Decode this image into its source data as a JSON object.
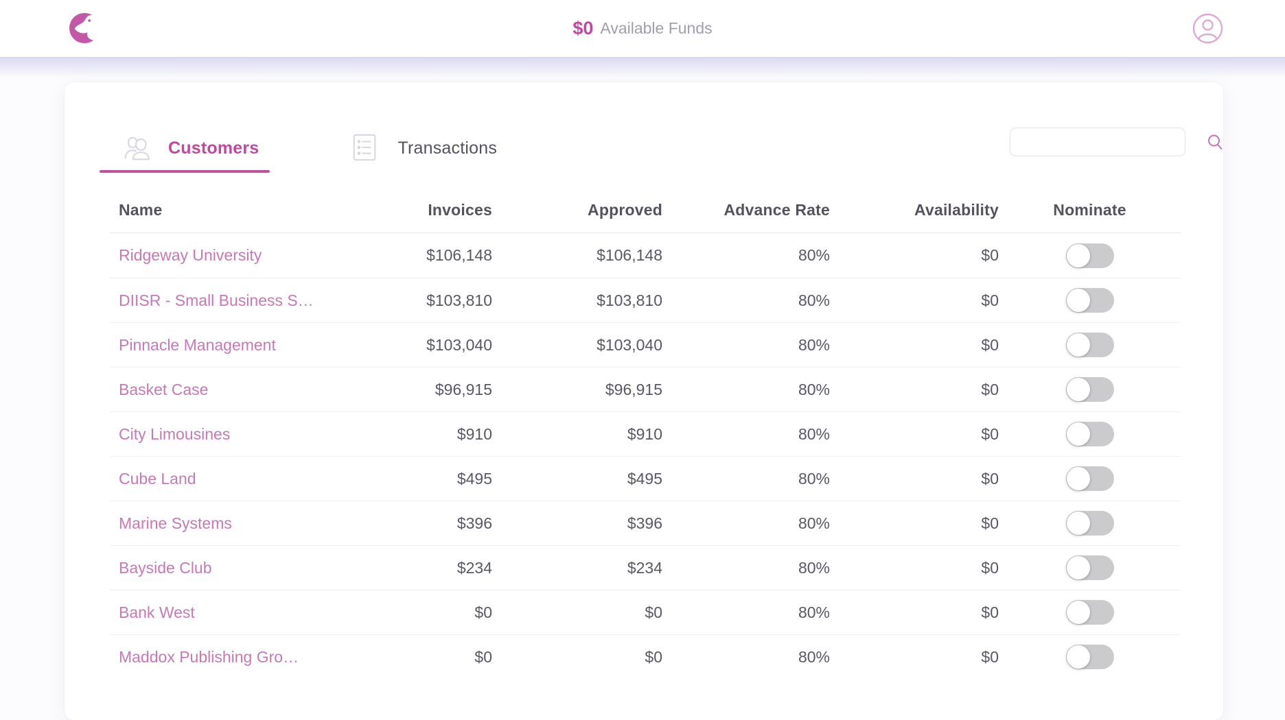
{
  "topbar": {
    "funds_amount": "$0",
    "funds_label": "Available Funds",
    "logo_icon": "duck-logo-icon",
    "avatar_icon": "user-circle-icon"
  },
  "tabs": [
    {
      "label": "Customers",
      "icon": "people-icon",
      "active": true
    },
    {
      "label": "Transactions",
      "icon": "list-icon",
      "active": false
    }
  ],
  "search": {
    "value": "",
    "placeholder": "",
    "icon": "search-icon"
  },
  "table": {
    "columns": [
      "Name",
      "Invoices",
      "Approved",
      "Advance Rate",
      "Availability",
      "Nominate"
    ],
    "rows": [
      {
        "name": "Ridgeway University",
        "invoices": "$106,148",
        "approved": "$106,148",
        "advance_rate": "80%",
        "availability": "$0",
        "nominate_on": false
      },
      {
        "name": "DIISR - Small Business S…",
        "invoices": "$103,810",
        "approved": "$103,810",
        "advance_rate": "80%",
        "availability": "$0",
        "nominate_on": false
      },
      {
        "name": "Pinnacle Management",
        "invoices": "$103,040",
        "approved": "$103,040",
        "advance_rate": "80%",
        "availability": "$0",
        "nominate_on": false
      },
      {
        "name": "Basket Case",
        "invoices": "$96,915",
        "approved": "$96,915",
        "advance_rate": "80%",
        "availability": "$0",
        "nominate_on": false
      },
      {
        "name": "City Limousines",
        "invoices": "$910",
        "approved": "$910",
        "advance_rate": "80%",
        "availability": "$0",
        "nominate_on": false
      },
      {
        "name": "Cube Land",
        "invoices": "$495",
        "approved": "$495",
        "advance_rate": "80%",
        "availability": "$0",
        "nominate_on": false
      },
      {
        "name": "Marine Systems",
        "invoices": "$396",
        "approved": "$396",
        "advance_rate": "80%",
        "availability": "$0",
        "nominate_on": false
      },
      {
        "name": "Bayside Club",
        "invoices": "$234",
        "approved": "$234",
        "advance_rate": "80%",
        "availability": "$0",
        "nominate_on": false
      },
      {
        "name": "Bank West",
        "invoices": "$0",
        "approved": "$0",
        "advance_rate": "80%",
        "availability": "$0",
        "nominate_on": false
      },
      {
        "name": "Maddox Publishing Gro…",
        "invoices": "$0",
        "approved": "$0",
        "advance_rate": "80%",
        "availability": "$0",
        "nominate_on": false
      }
    ]
  },
  "colors": {
    "accent_pink": "#c2479e",
    "name_pink": "#c778b6",
    "text_gray": "#55525e",
    "muted_gray": "#a19eab",
    "toggle_track": "#cbcacd",
    "topbar_shadow": "#d9d9f1"
  }
}
